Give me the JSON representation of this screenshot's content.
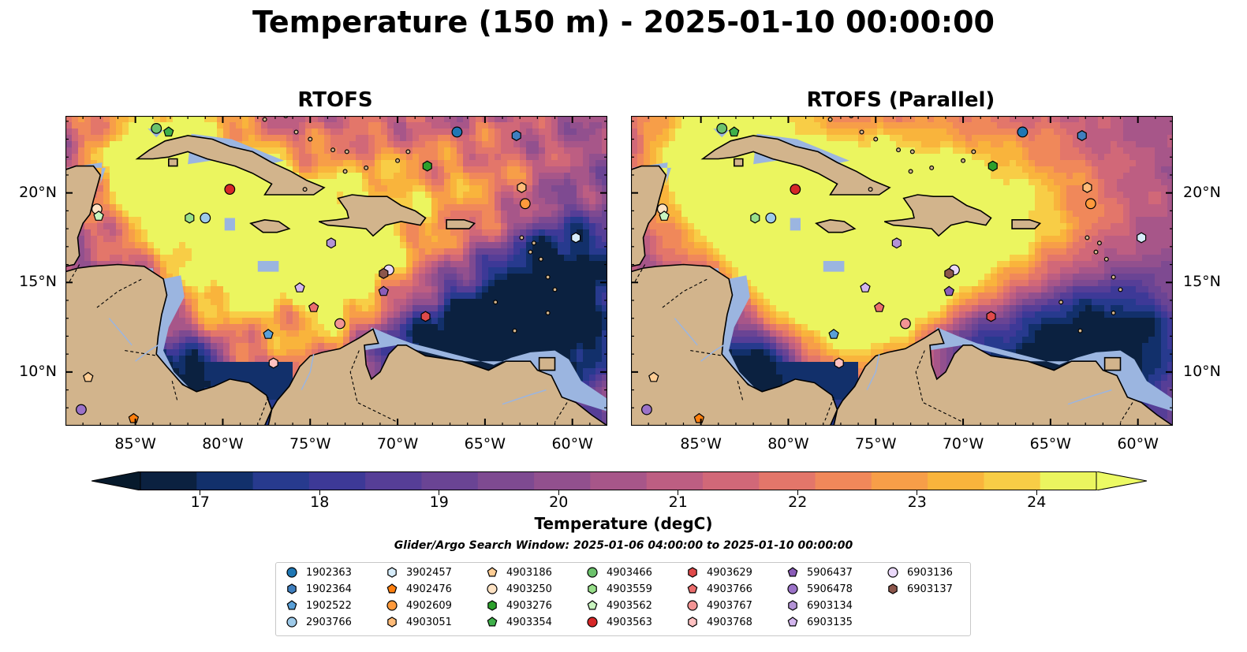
{
  "title": "Temperature (150 m) - 2025-01-10 00:00:00",
  "panels": [
    {
      "title": "RTOFS"
    },
    {
      "title": "RTOFS (Parallel)"
    }
  ],
  "map": {
    "lon_range": [
      -89,
      -58
    ],
    "lat_range": [
      7,
      24.3
    ],
    "lon_ticks": [
      {
        "value": -85,
        "label": "85°W"
      },
      {
        "value": -80,
        "label": "80°W"
      },
      {
        "value": -75,
        "label": "75°W"
      },
      {
        "value": -70,
        "label": "70°W"
      },
      {
        "value": -65,
        "label": "65°W"
      },
      {
        "value": -60,
        "label": "60°W"
      }
    ],
    "lat_ticks": [
      {
        "value": 20,
        "label": "20°N"
      },
      {
        "value": 15,
        "label": "15°N"
      },
      {
        "value": 10,
        "label": "10°N"
      }
    ],
    "colors": {
      "ocean_shallow": "#9bb5e0",
      "land": "#d2b48c",
      "river": "#9bb5e0"
    }
  },
  "colorbar": {
    "label": "Temperature (degC)",
    "min": 16.5,
    "max": 24.5,
    "ticks": [
      "17",
      "18",
      "19",
      "20",
      "21",
      "22",
      "23",
      "24"
    ],
    "colors": [
      "#0b2140",
      "#12306b",
      "#273a8e",
      "#3d3997",
      "#563e97",
      "#6a4494",
      "#7e4a91",
      "#92508e",
      "#a75689",
      "#bd5e82",
      "#d16878",
      "#e3766a",
      "#f0885a",
      "#f79e48",
      "#f9b43c",
      "#f8cd46",
      "#ebf55f"
    ],
    "under_color": "#071a2c",
    "over_color": "#ecfa64"
  },
  "search_window": "Glider/Argo Search Window: 2025-01-06 04:00:00 to 2025-01-10 00:00:00",
  "legend": [
    {
      "id": "1902363",
      "color": "#1f77b4",
      "marker": "circle"
    },
    {
      "id": "1902364",
      "color": "#3f7fbf",
      "marker": "hexagon"
    },
    {
      "id": "1902522",
      "color": "#5aa0d8",
      "marker": "pentagon"
    },
    {
      "id": "2903766",
      "color": "#9ecae9",
      "marker": "circle"
    },
    {
      "id": "3902457",
      "color": "#d6ecfa",
      "marker": "hexagon"
    },
    {
      "id": "4902476",
      "color": "#ff7f0e",
      "marker": "pentagon"
    },
    {
      "id": "4902609",
      "color": "#ff9a3c",
      "marker": "circle"
    },
    {
      "id": "4903051",
      "color": "#ffbb78",
      "marker": "hexagon"
    },
    {
      "id": "4903186",
      "color": "#ffcd94",
      "marker": "pentagon"
    },
    {
      "id": "4903250",
      "color": "#ffe3c4",
      "marker": "circle"
    },
    {
      "id": "4903276",
      "color": "#2ca02c",
      "marker": "hexagon"
    },
    {
      "id": "4903354",
      "color": "#3fb04a",
      "marker": "pentagon"
    },
    {
      "id": "4903466",
      "color": "#6cc26c",
      "marker": "circle"
    },
    {
      "id": "4903559",
      "color": "#98df8a",
      "marker": "hexagon"
    },
    {
      "id": "4903562",
      "color": "#c9f5c0",
      "marker": "pentagon"
    },
    {
      "id": "4903563",
      "color": "#d62728",
      "marker": "circle"
    },
    {
      "id": "4903629",
      "color": "#e04a4a",
      "marker": "hexagon"
    },
    {
      "id": "4903766",
      "color": "#eb6d6d",
      "marker": "pentagon"
    },
    {
      "id": "4903767",
      "color": "#f29494",
      "marker": "circle"
    },
    {
      "id": "4903768",
      "color": "#ffc1c1",
      "marker": "hexagon"
    },
    {
      "id": "5906437",
      "color": "#8a5cb8",
      "marker": "pentagon"
    },
    {
      "id": "5906478",
      "color": "#9b72c8",
      "marker": "circle"
    },
    {
      "id": "6903134",
      "color": "#b393d6",
      "marker": "hexagon"
    },
    {
      "id": "6903135",
      "color": "#d3b6ee",
      "marker": "pentagon"
    },
    {
      "id": "6903136",
      "color": "#ead8fa",
      "marker": "circle"
    },
    {
      "id": "6903137",
      "color": "#8c564b",
      "marker": "hexagon"
    }
  ],
  "observations": [
    {
      "id": "1902363",
      "lon": -66.6,
      "lat": 23.4
    },
    {
      "id": "1902364",
      "lon": -63.2,
      "lat": 23.2
    },
    {
      "id": "1902522",
      "lon": -77.4,
      "lat": 12.1
    },
    {
      "id": "2903766",
      "lon": -81.0,
      "lat": 18.6
    },
    {
      "id": "3902457",
      "lon": -59.8,
      "lat": 17.5
    },
    {
      "id": "4902476",
      "lon": -85.1,
      "lat": 7.4
    },
    {
      "id": "4902609",
      "lon": -62.7,
      "lat": 19.4
    },
    {
      "id": "4903051",
      "lon": -62.9,
      "lat": 20.3
    },
    {
      "id": "4903186",
      "lon": -87.7,
      "lat": 9.7
    },
    {
      "id": "4903250",
      "lon": -87.2,
      "lat": 19.1
    },
    {
      "id": "4903276",
      "lon": -68.3,
      "lat": 21.5
    },
    {
      "id": "4903354",
      "lon": -83.1,
      "lat": 23.4
    },
    {
      "id": "4903466",
      "lon": -83.8,
      "lat": 23.6
    },
    {
      "id": "4903559",
      "lon": -81.9,
      "lat": 18.6
    },
    {
      "id": "4903562",
      "lon": -87.1,
      "lat": 18.7
    },
    {
      "id": "4903563",
      "lon": -79.6,
      "lat": 20.2
    },
    {
      "id": "4903629",
      "lon": -68.4,
      "lat": 13.1
    },
    {
      "id": "4903766",
      "lon": -74.8,
      "lat": 13.6
    },
    {
      "id": "4903767",
      "lon": -73.3,
      "lat": 12.7
    },
    {
      "id": "4903768",
      "lon": -77.1,
      "lat": 10.5
    },
    {
      "id": "5906437",
      "lon": -70.8,
      "lat": 14.5
    },
    {
      "id": "5906478",
      "lon": -88.1,
      "lat": 7.9
    },
    {
      "id": "6903134",
      "lon": -73.8,
      "lat": 17.2
    },
    {
      "id": "6903135",
      "lon": -75.6,
      "lat": 14.7
    },
    {
      "id": "6903136",
      "lon": -70.5,
      "lat": 15.7
    },
    {
      "id": "6903137",
      "lon": -70.8,
      "lat": 15.5
    }
  ]
}
